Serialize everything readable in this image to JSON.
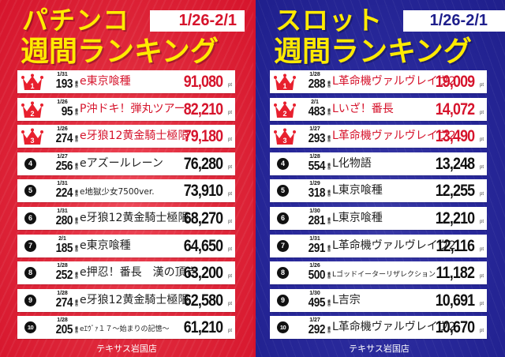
{
  "colors": {
    "pachinko_bg": "#d6142c",
    "slot_bg": "#1f1f8c",
    "title_yellow": "#ffea00",
    "top3_red": "#d6142c"
  },
  "pachinko": {
    "title_line1": "パチンコ",
    "title_line2": "週間ランキング",
    "date_range": "1/26-2/1",
    "footer": "テキサス岩国店",
    "unit_pt": "pt",
    "unit_ban": "番台",
    "rows": [
      {
        "rank": "1",
        "date": "1/31",
        "machine_no": "193",
        "name": "e東京喰種",
        "points": "91,080"
      },
      {
        "rank": "2",
        "date": "1/26",
        "machine_no": "95",
        "name": "P沖ドキ！弾丸ツアー",
        "points": "82,210"
      },
      {
        "rank": "3",
        "date": "1/26",
        "machine_no": "274",
        "name": "e牙狼12黄金騎士極限",
        "points": "79,180"
      },
      {
        "rank": "4",
        "date": "1/27",
        "machine_no": "256",
        "name": "eアズールレーン",
        "points": "76,280"
      },
      {
        "rank": "5",
        "date": "1/31",
        "machine_no": "224",
        "name": "e地獄少女7500ver.",
        "points": "73,910"
      },
      {
        "rank": "6",
        "date": "1/31",
        "machine_no": "280",
        "name": "e牙狼12黄金騎士極限",
        "points": "68,270"
      },
      {
        "rank": "7",
        "date": "2/1",
        "machine_no": "185",
        "name": "e東京喰種",
        "points": "64,650"
      },
      {
        "rank": "8",
        "date": "1/28",
        "machine_no": "252",
        "name": "e押忍！番長　漢の頂き",
        "points": "63,200"
      },
      {
        "rank": "9",
        "date": "1/28",
        "machine_no": "274",
        "name": "e牙狼12黄金騎士極限",
        "points": "62,580"
      },
      {
        "rank": "10",
        "date": "1/28",
        "machine_no": "205",
        "name": "eｴｳﾞｧ１７～始まりの記憶～",
        "points": "61,210"
      }
    ]
  },
  "slot": {
    "title_line1": "スロット",
    "title_line2": "週間ランキング",
    "date_range": "1/26-2/1",
    "footer": "テキサス岩国店",
    "unit_pt": "pt",
    "unit_ban": "番台",
    "rows": [
      {
        "rank": "1",
        "date": "1/28",
        "machine_no": "288",
        "name": "L革命機ヴァルヴレイヴ2",
        "points": "19,009"
      },
      {
        "rank": "2",
        "date": "2/1",
        "machine_no": "483",
        "name": "Lいざ！番長",
        "points": "14,072"
      },
      {
        "rank": "3",
        "date": "1/27",
        "machine_no": "293",
        "name": "L革命機ヴァルヴレイヴ2",
        "points": "13,490"
      },
      {
        "rank": "4",
        "date": "1/28",
        "machine_no": "554",
        "name": "L化物語",
        "points": "13,248"
      },
      {
        "rank": "5",
        "date": "1/29",
        "machine_no": "318",
        "name": "L東京喰種",
        "points": "12,255"
      },
      {
        "rank": "6",
        "date": "1/30",
        "machine_no": "281",
        "name": "L東京喰種",
        "points": "12,210"
      },
      {
        "rank": "7",
        "date": "1/31",
        "machine_no": "291",
        "name": "L革命機ヴァルヴレイヴ2",
        "points": "12,116"
      },
      {
        "rank": "8",
        "date": "1/26",
        "machine_no": "500",
        "name": "Lゴッドイーターリザレクション",
        "points": "11,182"
      },
      {
        "rank": "9",
        "date": "1/30",
        "machine_no": "495",
        "name": "L吉宗",
        "points": "10,691"
      },
      {
        "rank": "10",
        "date": "1/27",
        "machine_no": "292",
        "name": "L革命機ヴァルヴレイヴ2",
        "points": "10,670"
      }
    ]
  }
}
